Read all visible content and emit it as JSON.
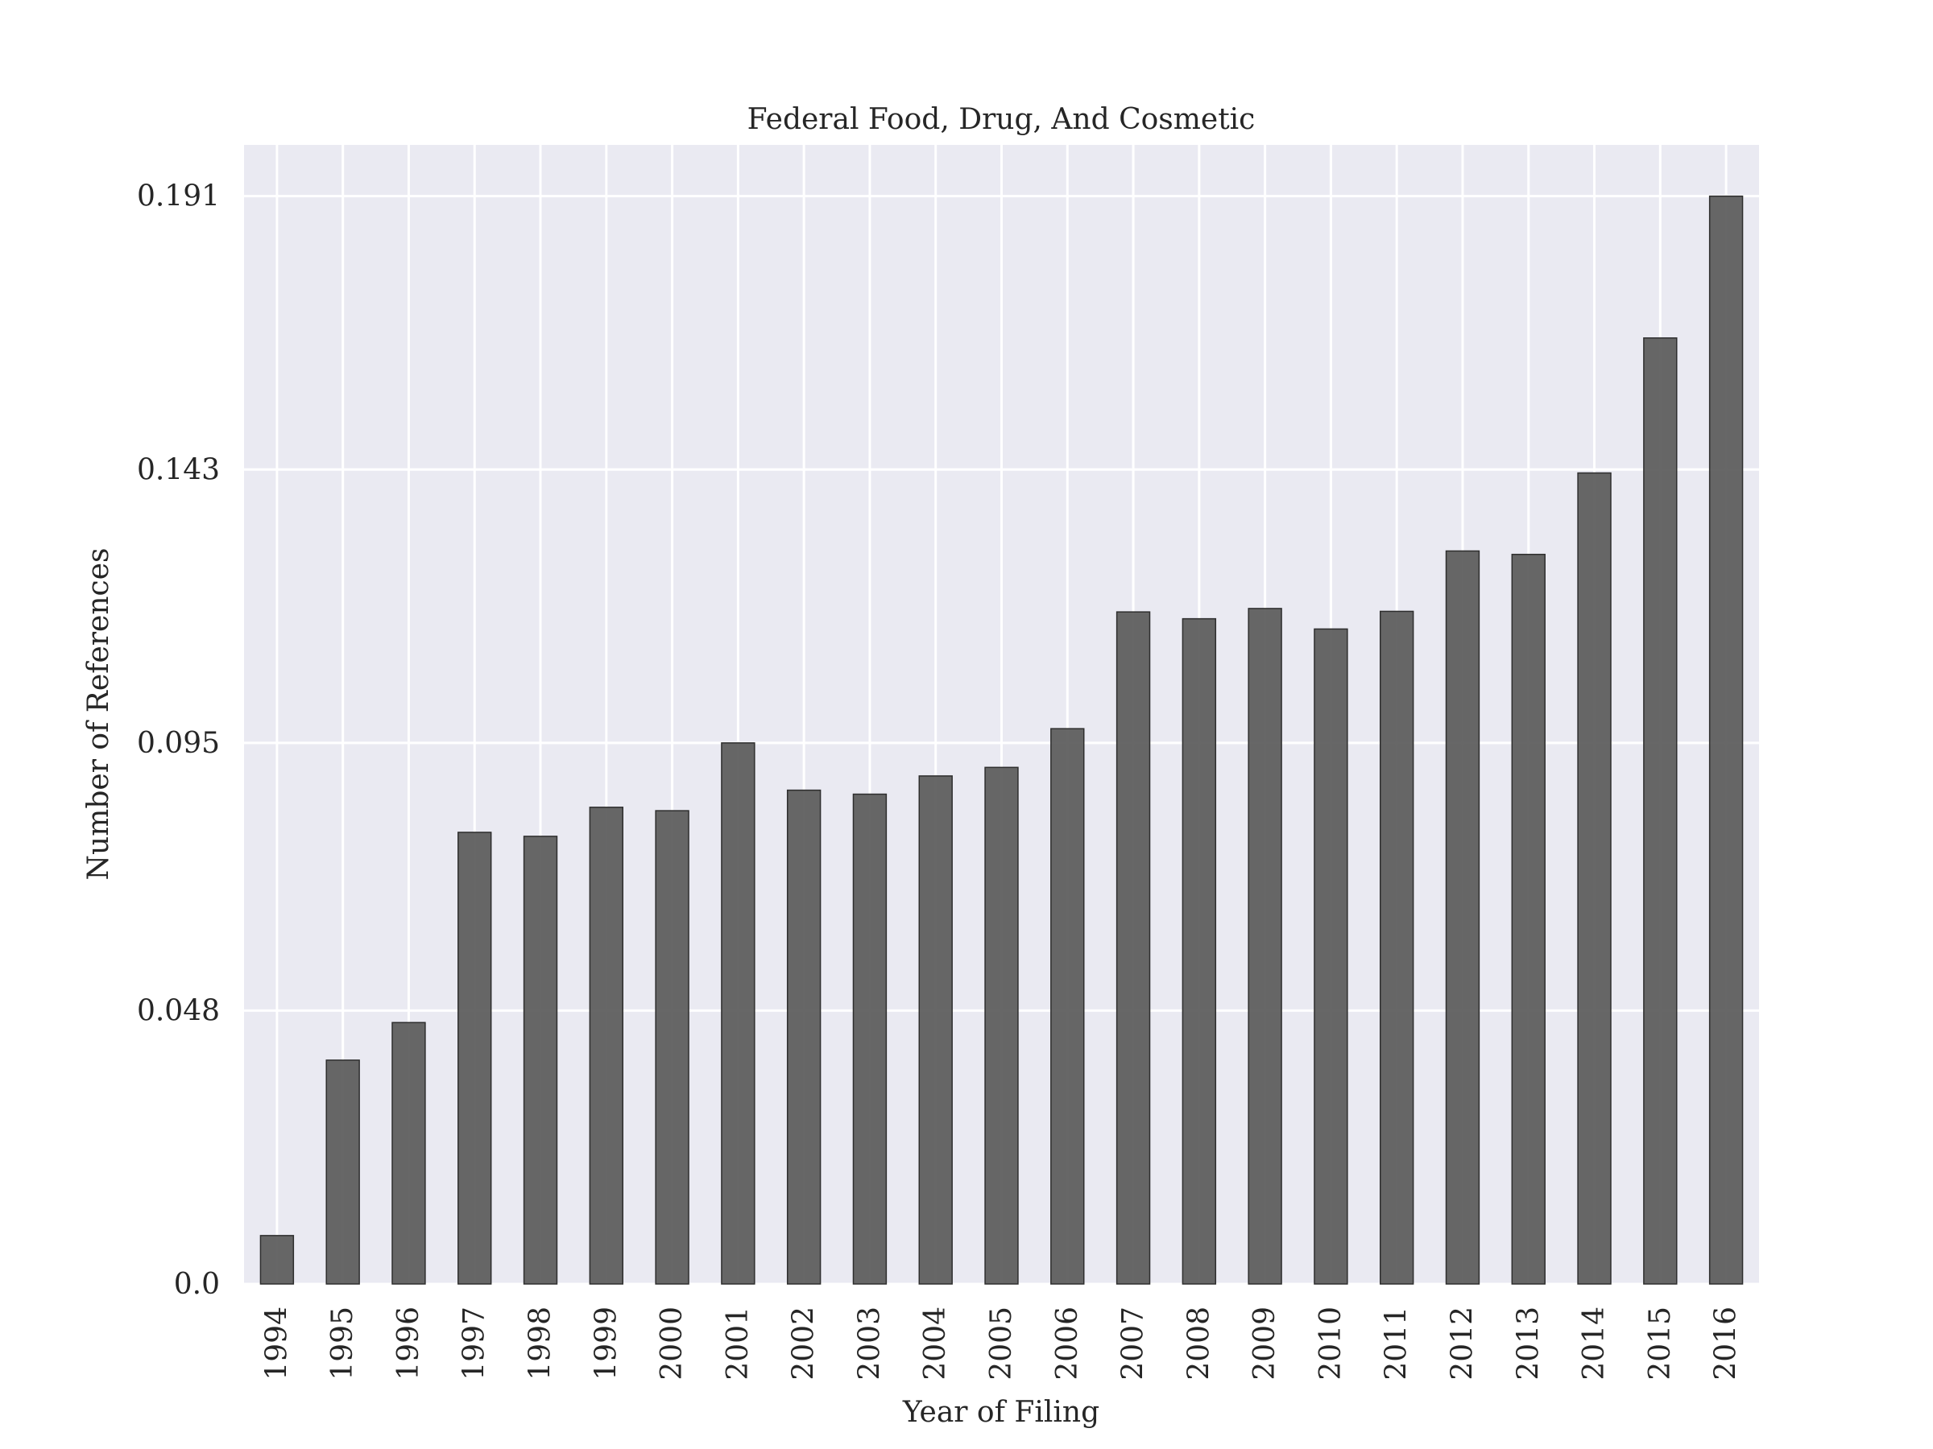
{
  "chart_data": {
    "type": "bar",
    "title": "Federal Food, Drug, And Cosmetic",
    "xlabel": "Year of Filing",
    "ylabel": "Number of References",
    "categories": [
      "1994",
      "1995",
      "1996",
      "1997",
      "1998",
      "1999",
      "2000",
      "2001",
      "2002",
      "2003",
      "2004",
      "2005",
      "2006",
      "2007",
      "2008",
      "2009",
      "2010",
      "2011",
      "2012",
      "2013",
      "2014",
      "2015",
      "2016"
    ],
    "values": [
      0.0085,
      0.0393,
      0.0459,
      0.0793,
      0.0786,
      0.0837,
      0.0831,
      0.095,
      0.0867,
      0.086,
      0.0892,
      0.0907,
      0.0975,
      0.118,
      0.1168,
      0.1186,
      0.115,
      0.1181,
      0.1287,
      0.1281,
      0.1424,
      0.1661,
      0.191
    ],
    "ylim": [
      0,
      0.2
    ],
    "yticks": [
      0.0,
      0.048,
      0.095,
      0.143,
      0.191
    ],
    "ytick_labels": [
      "0.0",
      "0.048",
      "0.095",
      "0.143",
      "0.191"
    ],
    "grid": true,
    "colors": {
      "background": "#EAEAF2",
      "grid": "#FFFFFF",
      "bar": "#5A5A5A",
      "bar_edge": "#2E2E2E"
    }
  }
}
